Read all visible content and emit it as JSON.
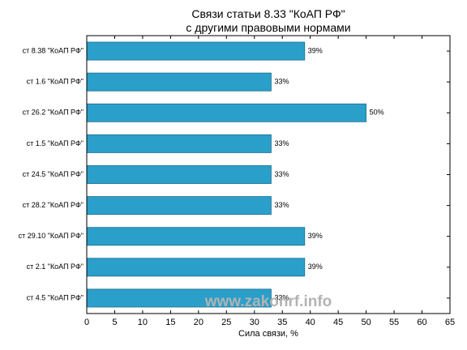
{
  "chart_data": {
    "type": "bar",
    "orientation": "horizontal",
    "title": "Связи статьи 8.33 \"КоАП РФ\"",
    "subtitle": "с другими правовыми нормами",
    "xlabel": "Сила связи, %",
    "ylabel": "",
    "xlim": [
      0,
      65
    ],
    "xticks": [
      0,
      5,
      10,
      15,
      20,
      25,
      30,
      35,
      40,
      45,
      50,
      55,
      60,
      65
    ],
    "categories": [
      "ст 8.38 \"КоАП РФ\"",
      "ст 1.6 \"КоАП РФ\"",
      "ст 26.2 \"КоАП РФ\"",
      "ст 1.5 \"КоАП РФ\"",
      "ст 24.5 \"КоАП РФ\"",
      "ст 28.2 \"КоАП РФ\"",
      "ст 29.10 \"КоАП РФ\"",
      "ст 2.1 \"КоАП РФ\"",
      "ст 4.5 \"КоАП РФ\""
    ],
    "values": [
      39,
      33,
      50,
      33,
      33,
      33,
      39,
      39,
      33
    ],
    "value_labels": [
      "39%",
      "33%",
      "50%",
      "33%",
      "33%",
      "33%",
      "39%",
      "39%",
      "33%"
    ],
    "bar_color": "#2a9fc9",
    "grid": false,
    "watermark": "www.zakonrf.info"
  }
}
